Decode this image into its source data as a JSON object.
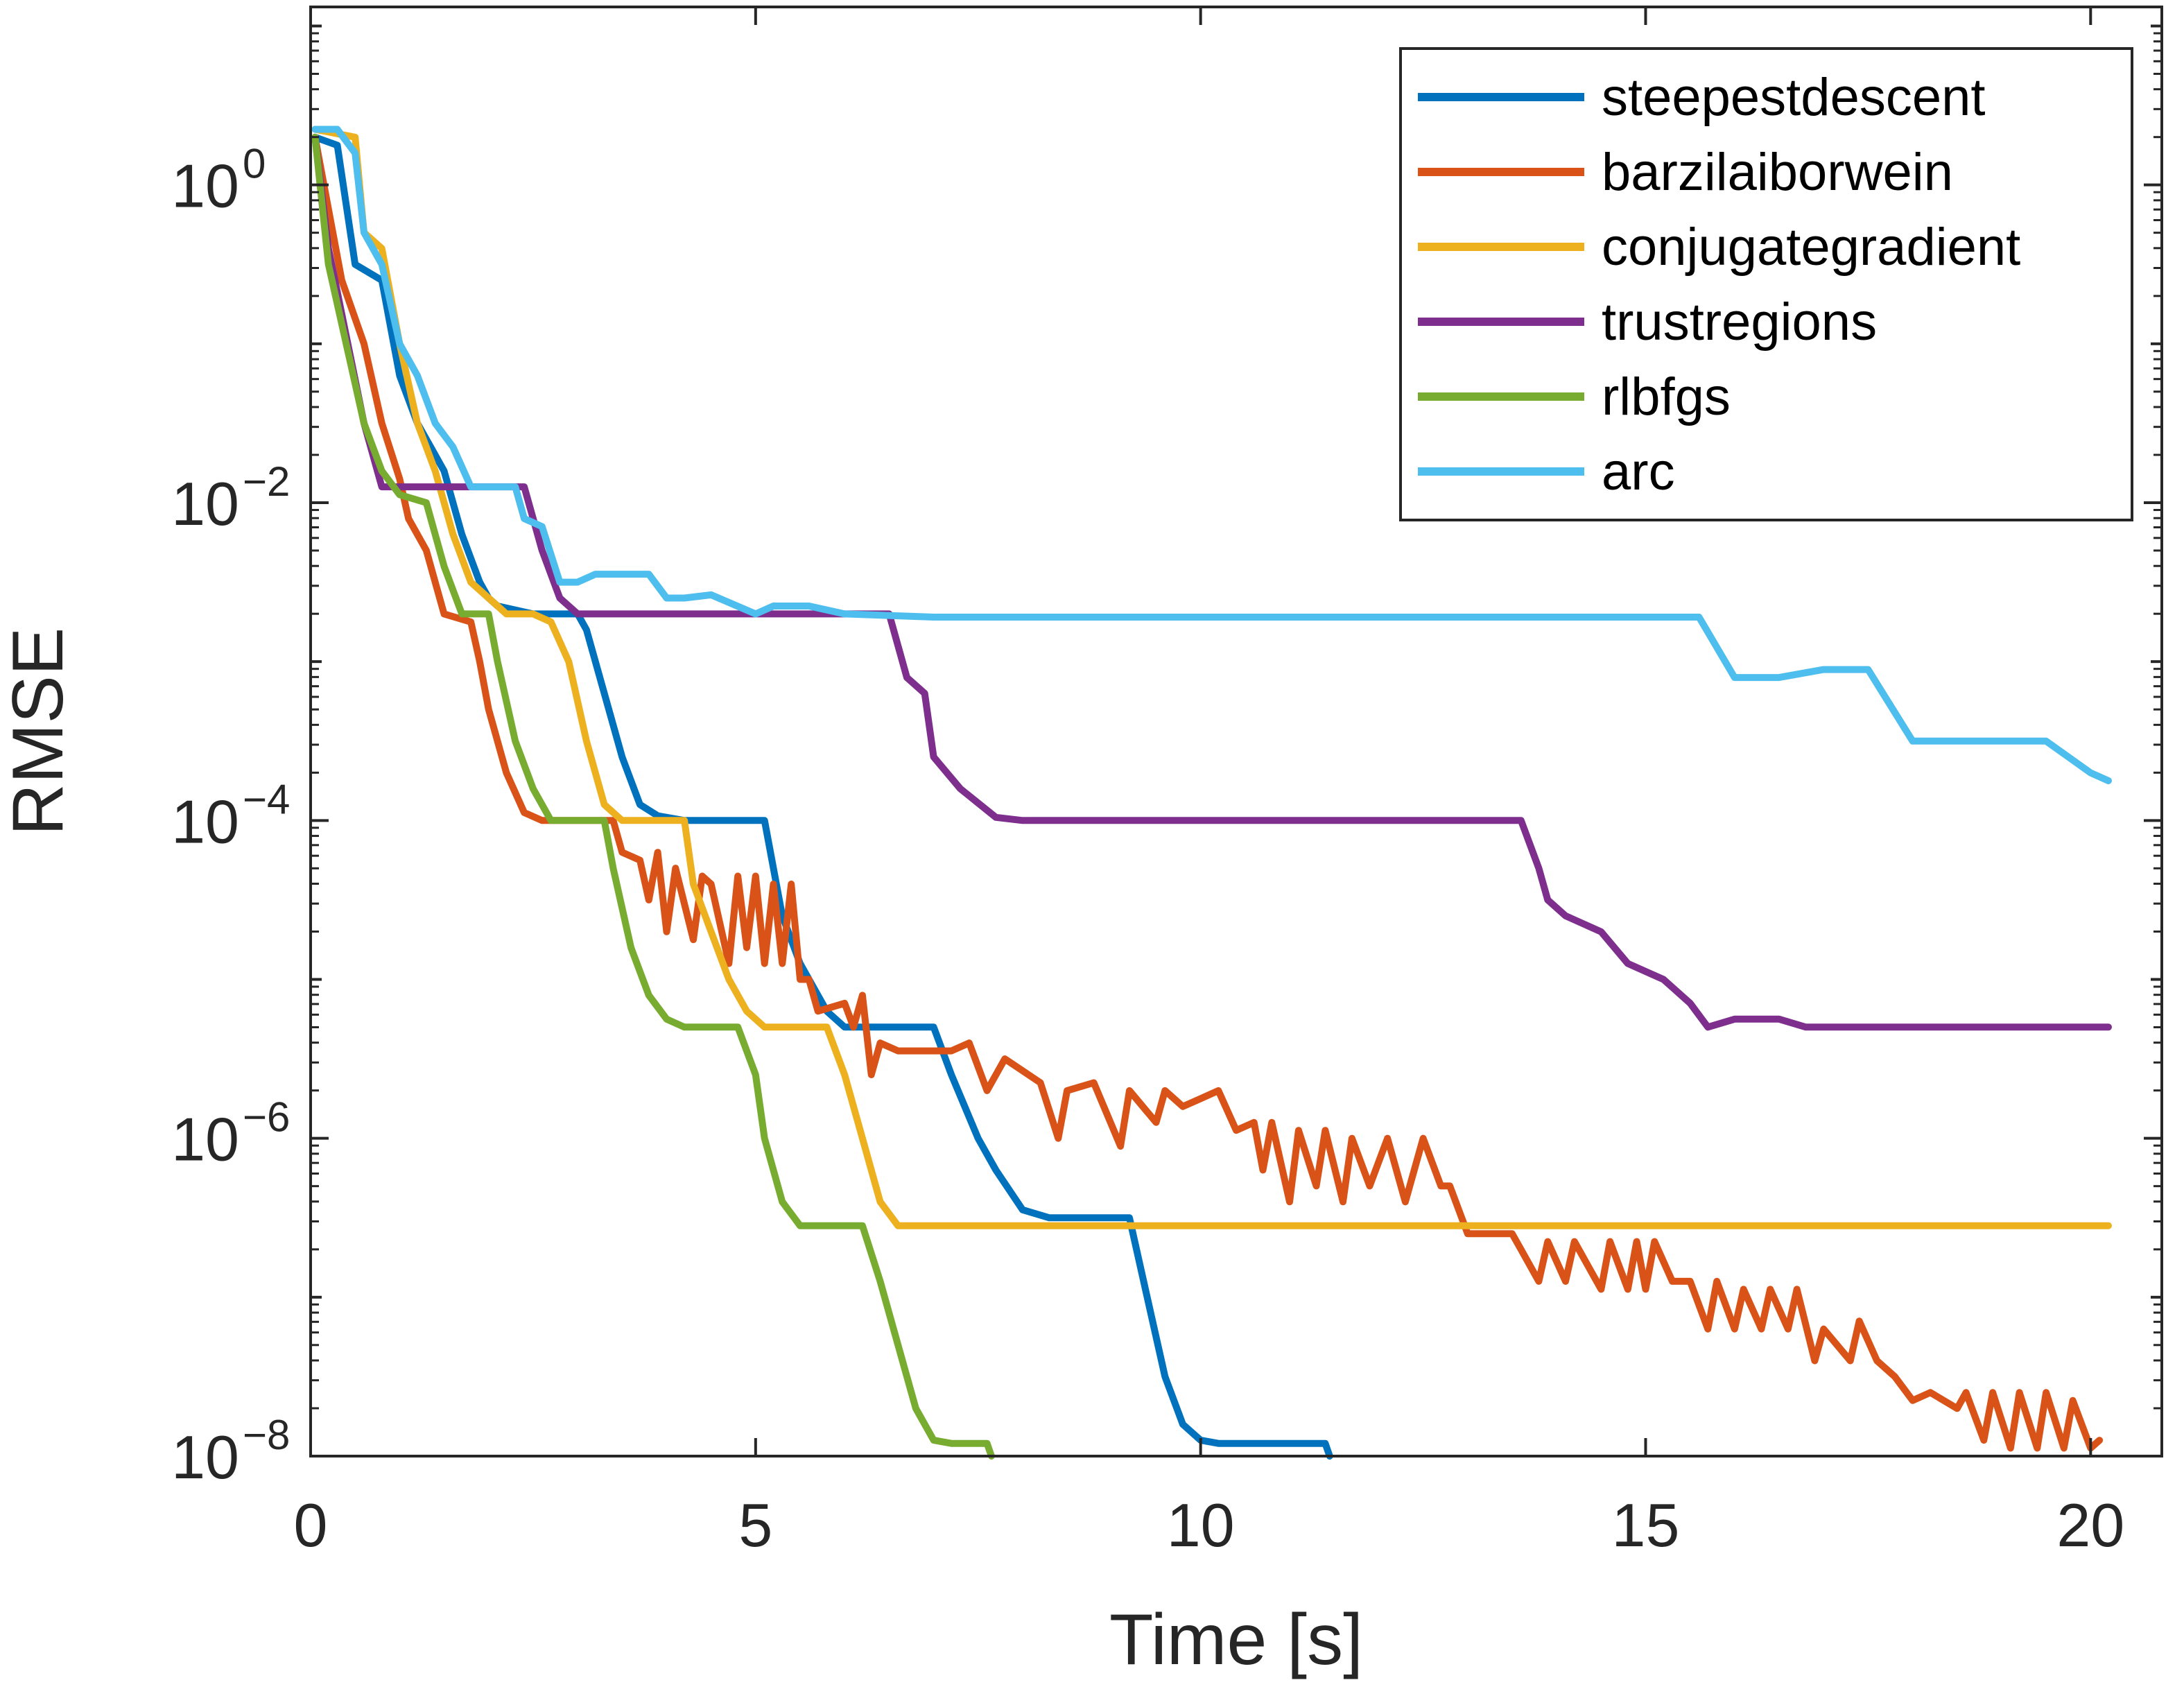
{
  "chart_data": {
    "type": "line",
    "title": "",
    "xlabel": "Time [s]",
    "ylabel": "RMSE",
    "xlim": [
      0,
      20.8
    ],
    "ylim_log10": [
      -8,
      1.12
    ],
    "yscale": "log",
    "grid": false,
    "legend_position": "top-right",
    "x_ticks": [
      {
        "value": 0,
        "label": "0"
      },
      {
        "value": 5,
        "label": "5"
      },
      {
        "value": 10,
        "label": "10"
      },
      {
        "value": 15,
        "label": "15"
      },
      {
        "value": 20,
        "label": "20"
      }
    ],
    "y_ticks": [
      {
        "exp": 0,
        "base": "10",
        "sup": "0"
      },
      {
        "exp": -2,
        "base": "10",
        "sup": "−2"
      },
      {
        "exp": -4,
        "base": "10",
        "sup": "−4"
      },
      {
        "exp": -6,
        "base": "10",
        "sup": "−6"
      },
      {
        "exp": -8,
        "base": "10",
        "sup": "−8"
      }
    ],
    "series": [
      {
        "name": "steepestdescent",
        "color": "#0072BD",
        "points": [
          [
            0.05,
            0.3
          ],
          [
            0.3,
            0.25
          ],
          [
            0.5,
            -0.5
          ],
          [
            0.8,
            -0.6
          ],
          [
            1.0,
            -1.2
          ],
          [
            1.2,
            -1.5
          ],
          [
            1.5,
            -1.8
          ],
          [
            1.7,
            -2.2
          ],
          [
            1.9,
            -2.5
          ],
          [
            2.0,
            -2.6
          ],
          [
            2.1,
            -2.65
          ],
          [
            2.5,
            -2.7
          ],
          [
            3.0,
            -2.7
          ],
          [
            3.1,
            -2.8
          ],
          [
            3.3,
            -3.2
          ],
          [
            3.5,
            -3.6
          ],
          [
            3.7,
            -3.9
          ],
          [
            3.9,
            -3.97
          ],
          [
            4.2,
            -4.0
          ],
          [
            5.0,
            -4.0
          ],
          [
            5.1,
            -4.0
          ],
          [
            5.3,
            -4.6
          ],
          [
            5.5,
            -4.9
          ],
          [
            5.6,
            -5.0
          ],
          [
            5.8,
            -5.2
          ],
          [
            6.0,
            -5.3
          ],
          [
            6.3,
            -5.3
          ],
          [
            7.0,
            -5.3
          ],
          [
            7.2,
            -5.6
          ],
          [
            7.5,
            -6.0
          ],
          [
            7.7,
            -6.2
          ],
          [
            8.0,
            -6.45
          ],
          [
            8.3,
            -6.5
          ],
          [
            9.2,
            -6.5
          ],
          [
            9.4,
            -7.0
          ],
          [
            9.6,
            -7.5
          ],
          [
            9.8,
            -7.8
          ],
          [
            10.0,
            -7.9
          ],
          [
            10.2,
            -7.92
          ],
          [
            11.4,
            -7.92
          ],
          [
            11.45,
            -8.0
          ]
        ]
      },
      {
        "name": "barzilaiborwein",
        "color": "#D95319",
        "points": [
          [
            0.05,
            0.3
          ],
          [
            0.35,
            -0.6
          ],
          [
            0.6,
            -1.0
          ],
          [
            0.8,
            -1.5
          ],
          [
            1.0,
            -1.85
          ],
          [
            1.1,
            -2.1
          ],
          [
            1.3,
            -2.3
          ],
          [
            1.5,
            -2.7
          ],
          [
            1.8,
            -2.75
          ],
          [
            1.9,
            -3.0
          ],
          [
            2.0,
            -3.3
          ],
          [
            2.2,
            -3.7
          ],
          [
            2.4,
            -3.95
          ],
          [
            2.6,
            -4.0
          ],
          [
            3.4,
            -4.0
          ],
          [
            3.5,
            -4.2
          ],
          [
            3.7,
            -4.25
          ],
          [
            3.8,
            -4.5
          ],
          [
            3.9,
            -4.2
          ],
          [
            4.0,
            -4.7
          ],
          [
            4.1,
            -4.3
          ],
          [
            4.3,
            -4.75
          ],
          [
            4.4,
            -4.35
          ],
          [
            4.5,
            -4.4
          ],
          [
            4.7,
            -4.9
          ],
          [
            4.8,
            -4.35
          ],
          [
            4.9,
            -4.8
          ],
          [
            5.0,
            -4.35
          ],
          [
            5.1,
            -4.9
          ],
          [
            5.2,
            -4.4
          ],
          [
            5.3,
            -4.9
          ],
          [
            5.4,
            -4.4
          ],
          [
            5.5,
            -5.0
          ],
          [
            5.6,
            -5.0
          ],
          [
            5.7,
            -5.2
          ],
          [
            6.0,
            -5.15
          ],
          [
            6.1,
            -5.3
          ],
          [
            6.2,
            -5.1
          ],
          [
            6.3,
            -5.6
          ],
          [
            6.4,
            -5.4
          ],
          [
            6.6,
            -5.45
          ],
          [
            7.2,
            -5.45
          ],
          [
            7.4,
            -5.4
          ],
          [
            7.6,
            -5.7
          ],
          [
            7.8,
            -5.5
          ],
          [
            8.2,
            -5.65
          ],
          [
            8.4,
            -6.0
          ],
          [
            8.5,
            -5.7
          ],
          [
            8.8,
            -5.65
          ],
          [
            9.1,
            -6.05
          ],
          [
            9.2,
            -5.7
          ],
          [
            9.5,
            -5.9
          ],
          [
            9.6,
            -5.7
          ],
          [
            9.8,
            -5.8
          ],
          [
            10.0,
            -5.75
          ],
          [
            10.2,
            -5.7
          ],
          [
            10.4,
            -5.95
          ],
          [
            10.6,
            -5.9
          ],
          [
            10.7,
            -6.2
          ],
          [
            10.8,
            -5.9
          ],
          [
            11.0,
            -6.4
          ],
          [
            11.1,
            -5.95
          ],
          [
            11.3,
            -6.3
          ],
          [
            11.4,
            -5.95
          ],
          [
            11.6,
            -6.4
          ],
          [
            11.7,
            -6.0
          ],
          [
            11.9,
            -6.3
          ],
          [
            12.1,
            -6.0
          ],
          [
            12.3,
            -6.4
          ],
          [
            12.5,
            -6.0
          ],
          [
            12.7,
            -6.3
          ],
          [
            12.8,
            -6.3
          ],
          [
            13.0,
            -6.6
          ],
          [
            13.5,
            -6.6
          ],
          [
            13.6,
            -6.7
          ],
          [
            13.8,
            -6.9
          ],
          [
            13.9,
            -6.65
          ],
          [
            14.1,
            -6.9
          ],
          [
            14.2,
            -6.65
          ],
          [
            14.5,
            -6.95
          ],
          [
            14.6,
            -6.65
          ],
          [
            14.8,
            -6.95
          ],
          [
            14.9,
            -6.65
          ],
          [
            15.0,
            -6.95
          ],
          [
            15.1,
            -6.65
          ],
          [
            15.3,
            -6.9
          ],
          [
            15.5,
            -6.9
          ],
          [
            15.7,
            -7.2
          ],
          [
            15.8,
            -6.9
          ],
          [
            16.0,
            -7.2
          ],
          [
            16.1,
            -6.95
          ],
          [
            16.3,
            -7.2
          ],
          [
            16.4,
            -6.95
          ],
          [
            16.6,
            -7.2
          ],
          [
            16.7,
            -6.95
          ],
          [
            16.9,
            -7.4
          ],
          [
            17.0,
            -7.2
          ],
          [
            17.3,
            -7.4
          ],
          [
            17.4,
            -7.15
          ],
          [
            17.6,
            -7.4
          ],
          [
            17.8,
            -7.5
          ],
          [
            18.0,
            -7.65
          ],
          [
            18.2,
            -7.6
          ],
          [
            18.5,
            -7.7
          ],
          [
            18.6,
            -7.6
          ],
          [
            18.8,
            -7.9
          ],
          [
            18.9,
            -7.6
          ],
          [
            19.1,
            -7.95
          ],
          [
            19.2,
            -7.6
          ],
          [
            19.4,
            -7.95
          ],
          [
            19.5,
            -7.6
          ],
          [
            19.7,
            -7.95
          ],
          [
            19.8,
            -7.65
          ],
          [
            20.0,
            -7.95
          ],
          [
            20.1,
            -7.9
          ]
        ]
      },
      {
        "name": "conjugategradient",
        "color": "#EDB120",
        "points": [
          [
            0.05,
            0.35
          ],
          [
            0.5,
            0.3
          ],
          [
            0.6,
            -0.3
          ],
          [
            0.8,
            -0.4
          ],
          [
            1.0,
            -1.0
          ],
          [
            1.2,
            -1.5
          ],
          [
            1.4,
            -1.8
          ],
          [
            1.6,
            -2.2
          ],
          [
            1.8,
            -2.5
          ],
          [
            2.0,
            -2.6
          ],
          [
            2.2,
            -2.7
          ],
          [
            2.5,
            -2.7
          ],
          [
            2.7,
            -2.75
          ],
          [
            2.9,
            -3.0
          ],
          [
            3.1,
            -3.5
          ],
          [
            3.3,
            -3.9
          ],
          [
            3.5,
            -4.0
          ],
          [
            4.2,
            -4.0
          ],
          [
            4.3,
            -4.4
          ],
          [
            4.5,
            -4.7
          ],
          [
            4.7,
            -5.0
          ],
          [
            4.9,
            -5.2
          ],
          [
            5.1,
            -5.3
          ],
          [
            5.8,
            -5.3
          ],
          [
            6.0,
            -5.6
          ],
          [
            6.2,
            -6.0
          ],
          [
            6.4,
            -6.4
          ],
          [
            6.6,
            -6.55
          ],
          [
            20.2,
            -6.55
          ]
        ]
      },
      {
        "name": "trustregions",
        "color": "#7E2F8E",
        "points": [
          [
            0.05,
            0.3
          ],
          [
            0.2,
            -0.4
          ],
          [
            0.6,
            -1.5
          ],
          [
            0.8,
            -1.9
          ],
          [
            1.2,
            -1.9
          ],
          [
            2.4,
            -1.9
          ],
          [
            2.6,
            -2.3
          ],
          [
            2.8,
            -2.6
          ],
          [
            3.0,
            -2.7
          ],
          [
            3.5,
            -2.7
          ],
          [
            5.0,
            -2.7
          ],
          [
            6.5,
            -2.7
          ],
          [
            6.7,
            -3.1
          ],
          [
            6.9,
            -3.2
          ],
          [
            7.0,
            -3.6
          ],
          [
            7.3,
            -3.8
          ],
          [
            7.7,
            -3.98
          ],
          [
            8.0,
            -4.0
          ],
          [
            10.0,
            -4.0
          ],
          [
            13.6,
            -4.0
          ],
          [
            13.8,
            -4.3
          ],
          [
            13.9,
            -4.5
          ],
          [
            14.1,
            -4.6
          ],
          [
            14.5,
            -4.7
          ],
          [
            14.8,
            -4.9
          ],
          [
            15.2,
            -5.0
          ],
          [
            15.5,
            -5.15
          ],
          [
            15.7,
            -5.3
          ],
          [
            16.0,
            -5.25
          ],
          [
            16.5,
            -5.25
          ],
          [
            16.8,
            -5.3
          ],
          [
            20.2,
            -5.3
          ]
        ]
      },
      {
        "name": "rlbfgs",
        "color": "#77AC30",
        "points": [
          [
            0.05,
            0.3
          ],
          [
            0.2,
            -0.5
          ],
          [
            0.4,
            -1.0
          ],
          [
            0.6,
            -1.5
          ],
          [
            0.8,
            -1.8
          ],
          [
            1.0,
            -1.95
          ],
          [
            1.3,
            -2.0
          ],
          [
            1.5,
            -2.4
          ],
          [
            1.7,
            -2.7
          ],
          [
            2.0,
            -2.7
          ],
          [
            2.1,
            -3.0
          ],
          [
            2.3,
            -3.5
          ],
          [
            2.5,
            -3.8
          ],
          [
            2.7,
            -4.0
          ],
          [
            3.0,
            -4.0
          ],
          [
            3.3,
            -4.0
          ],
          [
            3.4,
            -4.3
          ],
          [
            3.6,
            -4.8
          ],
          [
            3.8,
            -5.1
          ],
          [
            4.0,
            -5.25
          ],
          [
            4.2,
            -5.3
          ],
          [
            4.8,
            -5.3
          ],
          [
            5.0,
            -5.6
          ],
          [
            5.1,
            -6.0
          ],
          [
            5.3,
            -6.4
          ],
          [
            5.5,
            -6.55
          ],
          [
            6.2,
            -6.55
          ],
          [
            6.4,
            -6.9
          ],
          [
            6.6,
            -7.3
          ],
          [
            6.8,
            -7.7
          ],
          [
            7.0,
            -7.9
          ],
          [
            7.2,
            -7.92
          ],
          [
            7.6,
            -7.92
          ],
          [
            7.65,
            -8.0
          ]
        ]
      },
      {
        "name": "arc",
        "color": "#4DBEEE",
        "points": [
          [
            0.05,
            0.35
          ],
          [
            0.3,
            0.35
          ],
          [
            0.5,
            0.2
          ],
          [
            0.6,
            -0.3
          ],
          [
            0.8,
            -0.5
          ],
          [
            1.0,
            -1.0
          ],
          [
            1.2,
            -1.2
          ],
          [
            1.4,
            -1.5
          ],
          [
            1.6,
            -1.65
          ],
          [
            1.8,
            -1.9
          ],
          [
            2.0,
            -1.9
          ],
          [
            2.3,
            -1.9
          ],
          [
            2.4,
            -2.1
          ],
          [
            2.6,
            -2.15
          ],
          [
            2.8,
            -2.5
          ],
          [
            3.0,
            -2.5
          ],
          [
            3.2,
            -2.45
          ],
          [
            3.8,
            -2.45
          ],
          [
            4.0,
            -2.6
          ],
          [
            4.2,
            -2.6
          ],
          [
            4.5,
            -2.58
          ],
          [
            5.0,
            -2.7
          ],
          [
            5.2,
            -2.65
          ],
          [
            5.6,
            -2.65
          ],
          [
            6.0,
            -2.7
          ],
          [
            7.0,
            -2.72
          ],
          [
            8.0,
            -2.72
          ],
          [
            10.0,
            -2.72
          ],
          [
            12.0,
            -2.72
          ],
          [
            14.0,
            -2.72
          ],
          [
            15.6,
            -2.72
          ],
          [
            16.0,
            -3.1
          ],
          [
            16.5,
            -3.1
          ],
          [
            17.0,
            -3.05
          ],
          [
            17.5,
            -3.05
          ],
          [
            18.0,
            -3.5
          ],
          [
            18.5,
            -3.5
          ],
          [
            19.5,
            -3.5
          ],
          [
            20.0,
            -3.7
          ],
          [
            20.2,
            -3.75
          ]
        ]
      }
    ]
  }
}
